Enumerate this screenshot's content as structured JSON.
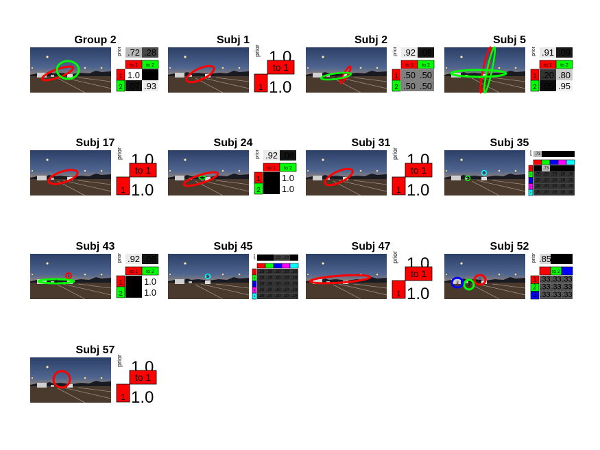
{
  "chart_data": {
    "type": "table",
    "panels": [
      {
        "title": "Group 2",
        "prior": [
          ".72",
          ".28"
        ],
        "headers": [
          "to 1",
          "to 2"
        ],
        "rows": [
          [
            "1.0",
            ""
          ],
          [
            ".07",
            ".93"
          ]
        ],
        "states": [
          "#ff0000",
          "#00ff00"
        ],
        "markers": [
          {
            "state": 1,
            "label": ""
          },
          {
            "state": 2,
            "label": ""
          }
        ]
      },
      {
        "title": "Subj 1",
        "prior": [
          "1.0"
        ],
        "headers": [
          "to 1"
        ],
        "rows": [
          [
            "1.0"
          ]
        ],
        "states": [
          "#ff0000"
        ],
        "markers": [
          {
            "state": 1,
            "label": ""
          }
        ]
      },
      {
        "title": "Subj 2",
        "prior": [
          ".92",
          ".08"
        ],
        "headers": [
          "to 1",
          "to 2"
        ],
        "rows": [
          [
            ".50",
            ".50"
          ],
          [
            ".50",
            ".50"
          ]
        ],
        "states": [
          "#ff0000",
          "#00ff00"
        ],
        "markers": [
          {
            "state": 1,
            "label": ""
          },
          {
            "state": 2,
            "label": "2"
          }
        ]
      },
      {
        "title": "Subj 5",
        "prior": [
          ".91",
          ".09"
        ],
        "headers": [
          "to 1",
          "to 2"
        ],
        "rows": [
          [
            ".20",
            ".80"
          ],
          [
            ".05",
            ".95"
          ]
        ],
        "states": [
          "#ff0000",
          "#00ff00"
        ],
        "markers": [
          {
            "state": 1,
            "label": ""
          },
          {
            "state": 2,
            "label": ""
          }
        ]
      },
      {
        "title": "Subj 17",
        "prior": [
          "1.0"
        ],
        "headers": [
          "to 1"
        ],
        "rows": [
          [
            "1.0"
          ]
        ],
        "states": [
          "#ff0000"
        ],
        "markers": [
          {
            "state": 1,
            "label": ""
          }
        ]
      },
      {
        "title": "Subj 24",
        "prior": [
          ".92",
          ".08"
        ],
        "headers": [
          "to 1",
          "to 2"
        ],
        "rows": [
          [
            "",
            "1.0"
          ],
          [
            "",
            "1.0"
          ]
        ],
        "states": [
          "#ff0000",
          "#00ff00"
        ],
        "markers": [
          {
            "state": 1,
            "label": ""
          },
          {
            "state": 2,
            "label": "2"
          }
        ]
      },
      {
        "title": "Subj 31",
        "prior": [
          "1.0"
        ],
        "headers": [
          "to 1"
        ],
        "rows": [
          [
            "1.0"
          ]
        ],
        "states": [
          "#ff0000"
        ],
        "markers": [
          {
            "state": 1,
            "label": ""
          }
        ]
      },
      {
        "title": "Subj 35",
        "prior": [
          ".73",
          "",
          "",
          "",
          ""
        ],
        "headers": [
          "",
          "",
          "",
          "",
          ""
        ],
        "rows": [
          [
            "",
            ".73",
            "",
            "",
            ""
          ],
          [
            ".20",
            ".20",
            ".20",
            ".20",
            ".20"
          ],
          [
            ".20",
            ".20",
            ".20",
            ".20",
            ".20"
          ],
          [
            ".20",
            ".20",
            ".20",
            ".20",
            ".20"
          ],
          [
            ".20",
            ".20",
            ".20",
            ".20",
            ".20"
          ]
        ],
        "states": [
          "#ff0000",
          "#00ff00",
          "#0000ff",
          "#ff00ff",
          "#00ffff"
        ],
        "markers": [
          {
            "state": 2,
            "label": "2"
          },
          {
            "state": 5,
            "label": "5"
          }
        ]
      },
      {
        "title": "Subj 43",
        "prior": [
          ".92",
          ".08"
        ],
        "headers": [
          "to 1",
          "to 2"
        ],
        "rows": [
          [
            "",
            "1.0"
          ],
          [
            "",
            "1.0"
          ]
        ],
        "states": [
          "#ff0000",
          "#00ff00"
        ],
        "markers": [
          {
            "state": 1,
            "label": "1"
          },
          {
            "state": 2,
            "label": "2"
          }
        ]
      },
      {
        "title": "Subj 45",
        "prior": [
          "",
          "",
          ".23",
          ".23",
          ""
        ],
        "headers": [
          "",
          "",
          "",
          "",
          ""
        ],
        "rows": [
          [
            ".20",
            ".20",
            ".20",
            ".20",
            ".20"
          ],
          [
            ".20",
            ".20",
            ".20",
            ".20",
            ".20"
          ],
          [
            ".20",
            ".20",
            ".20",
            ".20",
            ".20"
          ],
          [
            ".20",
            ".20",
            ".20",
            ".20",
            ".20"
          ],
          [
            ".20",
            ".20",
            ".20",
            ".20",
            ".20"
          ]
        ],
        "states": [
          "#ff0000",
          "#00ff00",
          "#0000ff",
          "#ff00ff",
          "#00ffff"
        ],
        "markers": [
          {
            "state": 5,
            "label": "5"
          }
        ]
      },
      {
        "title": "Subj 47",
        "prior": [
          "1.0"
        ],
        "headers": [
          "to 1"
        ],
        "rows": [
          [
            "1.0"
          ]
        ],
        "states": [
          "#ff0000"
        ],
        "markers": [
          {
            "state": 1,
            "label": ""
          }
        ]
      },
      {
        "title": "Subj 52",
        "prior": [
          ".85",
          "",
          ""
        ],
        "headers": [
          "",
          "to 2",
          ""
        ],
        "rows": [
          [
            ".33",
            ".33",
            ".33"
          ],
          [
            ".33",
            ".33",
            ".33"
          ],
          [
            ".33",
            ".33",
            ".33"
          ]
        ],
        "states": [
          "#ff0000",
          "#00ff00",
          "#0000ff"
        ],
        "markers": [
          {
            "state": 1,
            "label": "1"
          },
          {
            "state": 2,
            "label": "2"
          },
          {
            "state": 3,
            "label": "3"
          }
        ]
      },
      {
        "title": "Subj 57",
        "prior": [
          "1.0"
        ],
        "headers": [
          "to 1"
        ],
        "rows": [
          [
            "1.0"
          ]
        ],
        "states": [
          "#ff0000"
        ],
        "markers": [
          {
            "state": 1,
            "label": ""
          }
        ]
      }
    ],
    "prior_label": "prior",
    "colors": {
      "state_1": "#ff0000",
      "state_2": "#00ff00",
      "state_3": "#0000ff",
      "state_4": "#ff00ff",
      "state_5": "#00ffff"
    }
  }
}
